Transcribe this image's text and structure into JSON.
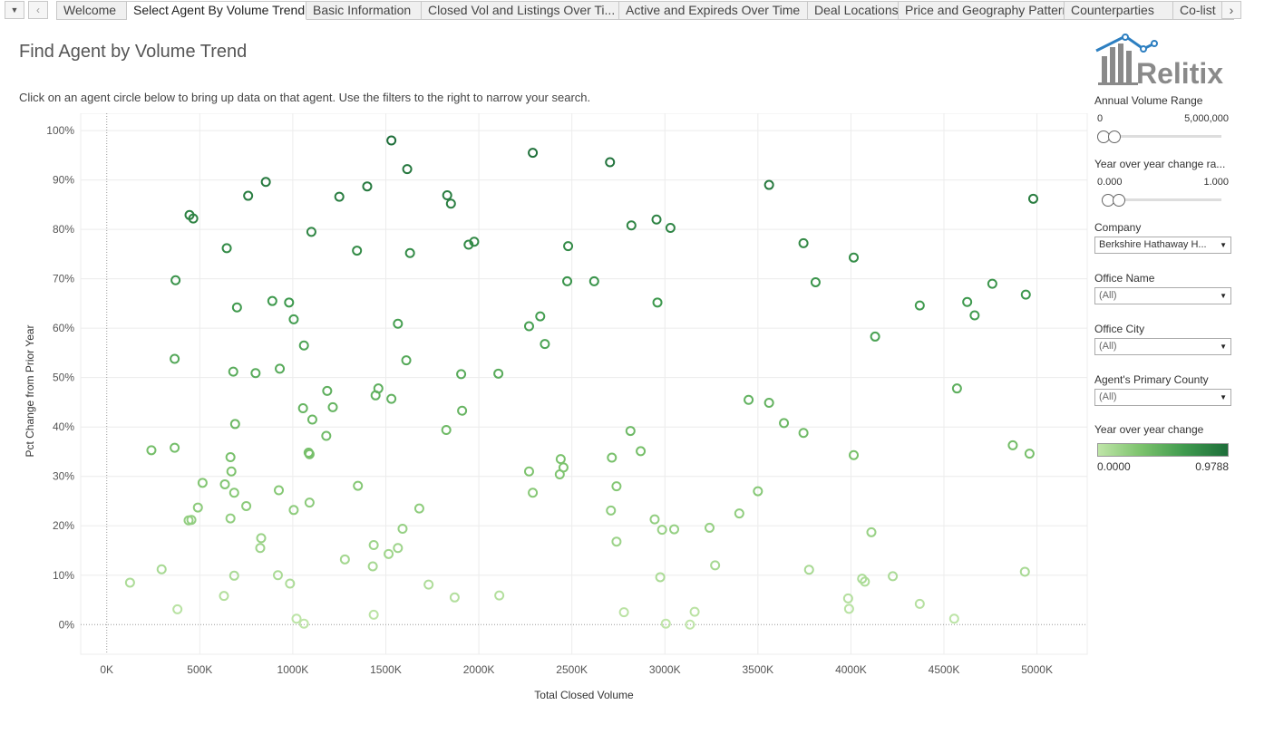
{
  "tabbar": {
    "menu_icon": "menu-down-icon",
    "prev_icon": "chevron-left-icon",
    "next_icon": "chevron-right-icon",
    "tabs": [
      {
        "label": "Welcome"
      },
      {
        "label": "Select Agent By Volume Trend",
        "active": true
      },
      {
        "label": "Basic Information"
      },
      {
        "label": "Closed Vol and Listings Over Ti..."
      },
      {
        "label": "Active and Expireds Over Time"
      },
      {
        "label": "Deal Locations"
      },
      {
        "label": "Price and Geography Pattern"
      },
      {
        "label": "Counterparties"
      },
      {
        "label": "Co-list"
      }
    ]
  },
  "header": {
    "title": "Find Agent by Volume Trend",
    "instructions": "Click on an agent circle below to bring up data on that agent. Use the filters to the right to narrow your search."
  },
  "logo": {
    "text": "Relitix",
    "icon": "chart-house-logo-icon"
  },
  "filters": {
    "annual_volume": {
      "label": "Annual Volume Range",
      "min": "0",
      "max": "5,000,000"
    },
    "yoy_range": {
      "label": "Year over year change ra...",
      "min": "0.000",
      "max": "1.000"
    },
    "company": {
      "label": "Company",
      "value": "Berkshire Hathaway H..."
    },
    "office_name": {
      "label": "Office Name",
      "value": "(All)"
    },
    "office_city": {
      "label": "Office City",
      "value": "(All)"
    },
    "county": {
      "label": "Agent's Primary County",
      "value": "(All)"
    }
  },
  "legend": {
    "title": "Year over year change",
    "min": "0.0000",
    "max": "0.9788",
    "color_low": "#bfe5a8",
    "color_high": "#1e6e3a"
  },
  "chart_data": {
    "type": "scatter",
    "title": "",
    "xlabel": "Total Closed Volume",
    "ylabel": "Pct Change from Prior Year",
    "xlim": [
      -140000,
      5270000
    ],
    "ylim": [
      -0.06,
      1.035
    ],
    "x_ticks": [
      0,
      500000,
      1000000,
      1500000,
      2000000,
      2500000,
      3000000,
      3500000,
      4000000,
      4500000,
      5000000
    ],
    "x_tick_labels": [
      "0K",
      "500K",
      "1000K",
      "1500K",
      "2000K",
      "2500K",
      "3000K",
      "3500K",
      "4000K",
      "4500K",
      "5000K"
    ],
    "y_ticks": [
      0,
      0.1,
      0.2,
      0.3,
      0.4,
      0.5,
      0.6,
      0.7,
      0.8,
      0.9,
      1.0
    ],
    "y_tick_labels": [
      "0%",
      "10%",
      "20%",
      "30%",
      "40%",
      "50%",
      "60%",
      "70%",
      "80%",
      "90%",
      "100%"
    ],
    "grid": true,
    "points": [
      [
        1530000,
        0.98
      ],
      [
        2290000,
        0.955
      ],
      [
        2705000,
        0.936
      ],
      [
        1615000,
        0.922
      ],
      [
        855000,
        0.896
      ],
      [
        3560000,
        0.89
      ],
      [
        760000,
        0.868
      ],
      [
        1400000,
        0.887
      ],
      [
        1250000,
        0.866
      ],
      [
        1830000,
        0.869
      ],
      [
        1850000,
        0.852
      ],
      [
        4980000,
        0.862
      ],
      [
        445000,
        0.829
      ],
      [
        465000,
        0.822
      ],
      [
        2955000,
        0.82
      ],
      [
        2820000,
        0.808
      ],
      [
        3030000,
        0.803
      ],
      [
        1100000,
        0.795
      ],
      [
        645000,
        0.762
      ],
      [
        1345000,
        0.757
      ],
      [
        1630000,
        0.752
      ],
      [
        1945000,
        0.769
      ],
      [
        1975000,
        0.775
      ],
      [
        2480000,
        0.766
      ],
      [
        3745000,
        0.772
      ],
      [
        4015000,
        0.743
      ],
      [
        3810000,
        0.693
      ],
      [
        370000,
        0.697
      ],
      [
        2475000,
        0.695
      ],
      [
        2620000,
        0.695
      ],
      [
        4760000,
        0.69
      ],
      [
        4940000,
        0.668
      ],
      [
        890000,
        0.655
      ],
      [
        980000,
        0.652
      ],
      [
        2960000,
        0.652
      ],
      [
        4370000,
        0.646
      ],
      [
        4625000,
        0.653
      ],
      [
        4665000,
        0.626
      ],
      [
        700000,
        0.642
      ],
      [
        1005000,
        0.618
      ],
      [
        2330000,
        0.624
      ],
      [
        2270000,
        0.604
      ],
      [
        1565000,
        0.609
      ],
      [
        1060000,
        0.565
      ],
      [
        2355000,
        0.568
      ],
      [
        4130000,
        0.583
      ],
      [
        365000,
        0.538
      ],
      [
        1610000,
        0.535
      ],
      [
        680000,
        0.512
      ],
      [
        800000,
        0.509
      ],
      [
        930000,
        0.518
      ],
      [
        1905000,
        0.507
      ],
      [
        2105000,
        0.508
      ],
      [
        1185000,
        0.473
      ],
      [
        1460000,
        0.478
      ],
      [
        1445000,
        0.464
      ],
      [
        1530000,
        0.457
      ],
      [
        4570000,
        0.478
      ],
      [
        3450000,
        0.455
      ],
      [
        3560000,
        0.449
      ],
      [
        1055000,
        0.438
      ],
      [
        1215000,
        0.44
      ],
      [
        1910000,
        0.433
      ],
      [
        1105000,
        0.415
      ],
      [
        690000,
        0.406
      ],
      [
        3640000,
        0.408
      ],
      [
        1825000,
        0.394
      ],
      [
        2815000,
        0.392
      ],
      [
        3745000,
        0.388
      ],
      [
        1180000,
        0.382
      ],
      [
        240000,
        0.353
      ],
      [
        365000,
        0.358
      ],
      [
        1085000,
        0.348
      ],
      [
        1090000,
        0.345
      ],
      [
        2870000,
        0.351
      ],
      [
        4870000,
        0.363
      ],
      [
        4960000,
        0.346
      ],
      [
        4015000,
        0.343
      ],
      [
        665000,
        0.339
      ],
      [
        2440000,
        0.335
      ],
      [
        2715000,
        0.338
      ],
      [
        2455000,
        0.318
      ],
      [
        2435000,
        0.304
      ],
      [
        2270000,
        0.31
      ],
      [
        670000,
        0.31
      ],
      [
        515000,
        0.287
      ],
      [
        635000,
        0.284
      ],
      [
        1350000,
        0.281
      ],
      [
        2740000,
        0.28
      ],
      [
        685000,
        0.267
      ],
      [
        925000,
        0.272
      ],
      [
        2290000,
        0.267
      ],
      [
        3500000,
        0.27
      ],
      [
        490000,
        0.237
      ],
      [
        750000,
        0.24
      ],
      [
        1090000,
        0.247
      ],
      [
        1005000,
        0.232
      ],
      [
        1680000,
        0.235
      ],
      [
        2710000,
        0.231
      ],
      [
        3400000,
        0.225
      ],
      [
        455000,
        0.212
      ],
      [
        440000,
        0.211
      ],
      [
        665000,
        0.215
      ],
      [
        2945000,
        0.213
      ],
      [
        1590000,
        0.194
      ],
      [
        2985000,
        0.192
      ],
      [
        3050000,
        0.193
      ],
      [
        3240000,
        0.196
      ],
      [
        4110000,
        0.187
      ],
      [
        830000,
        0.175
      ],
      [
        2740000,
        0.168
      ],
      [
        825000,
        0.155
      ],
      [
        1435000,
        0.161
      ],
      [
        1565000,
        0.155
      ],
      [
        1515000,
        0.143
      ],
      [
        1280000,
        0.132
      ],
      [
        3270000,
        0.12
      ],
      [
        1430000,
        0.118
      ],
      [
        3775000,
        0.111
      ],
      [
        4935000,
        0.107
      ],
      [
        295000,
        0.112
      ],
      [
        685000,
        0.099
      ],
      [
        920000,
        0.1
      ],
      [
        985000,
        0.083
      ],
      [
        4225000,
        0.098
      ],
      [
        2975000,
        0.096
      ],
      [
        4060000,
        0.093
      ],
      [
        4075000,
        0.087
      ],
      [
        125000,
        0.085
      ],
      [
        1730000,
        0.081
      ],
      [
        630000,
        0.058
      ],
      [
        1870000,
        0.055
      ],
      [
        2110000,
        0.059
      ],
      [
        3985000,
        0.053
      ],
      [
        4370000,
        0.042
      ],
      [
        3990000,
        0.032
      ],
      [
        380000,
        0.031
      ],
      [
        3160000,
        0.026
      ],
      [
        2780000,
        0.025
      ],
      [
        1435000,
        0.02
      ],
      [
        1020000,
        0.012
      ],
      [
        4555000,
        0.012
      ],
      [
        1060000,
        0.002
      ],
      [
        3005000,
        0.002
      ],
      [
        3135000,
        0.0
      ]
    ]
  }
}
